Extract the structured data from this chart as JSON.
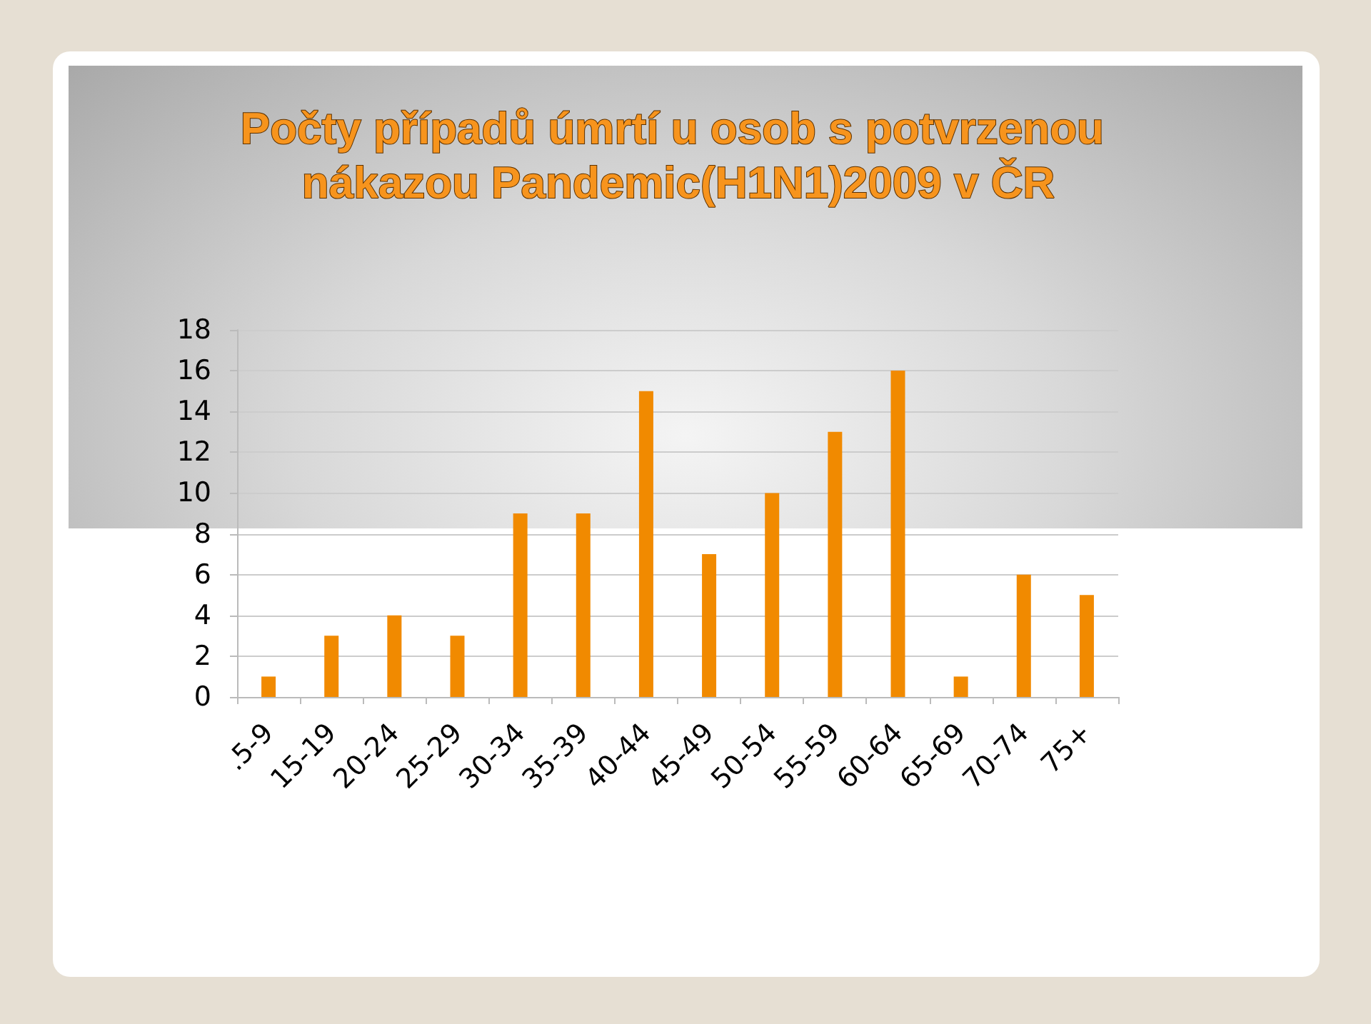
{
  "chart_data": {
    "type": "bar",
    "title": "Počty případů úmrtí u osob s potvrzenou nákazou Pandemic(H1N1)2009 v ČR",
    "categories": [
      ".5-9",
      "15-19",
      "20-24",
      "25-29",
      "30-34",
      "35-39",
      "40-44",
      "45-49",
      "50-54",
      "55-59",
      "60-64",
      "65-69",
      "70-74",
      "75+"
    ],
    "values": [
      1,
      3,
      4,
      3,
      9,
      9,
      15,
      7,
      10,
      13,
      16,
      1,
      6,
      5
    ],
    "color": "#f18a00",
    "ylim": [
      0,
      18
    ],
    "yticks": [
      0,
      2,
      4,
      6,
      8,
      10,
      12,
      14,
      16,
      18
    ],
    "grid": "y"
  }
}
